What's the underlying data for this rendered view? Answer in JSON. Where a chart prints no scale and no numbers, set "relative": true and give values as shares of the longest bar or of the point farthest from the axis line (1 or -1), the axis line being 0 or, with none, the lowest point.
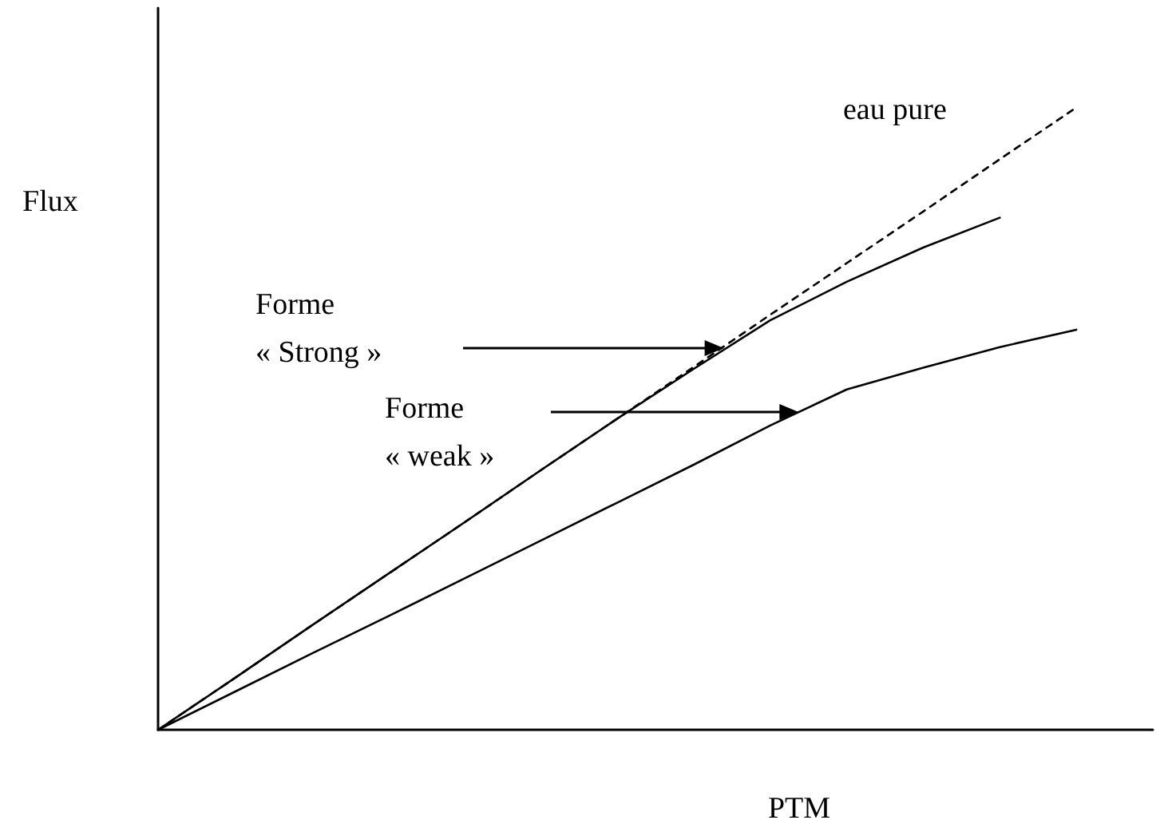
{
  "chart_data": {
    "type": "line",
    "relative": true,
    "xlabel": "PTM",
    "ylabel": "Flux",
    "legend": false,
    "annotations": [
      "Forme\n« Strong »",
      "Forme\n« weak »"
    ],
    "grid": false,
    "marker": "none",
    "categories": [
      null,
      null,
      null,
      null,
      null,
      null,
      null,
      null,
      null,
      null,
      null,
      null,
      null,
      null
    ],
    "series": [
      {
        "name": "eau pure",
        "color": "#000000",
        "line_style": "dashed",
        "values": [
          0,
          0.083,
          0.167,
          0.25,
          0.333,
          0.417,
          0.5,
          0.583,
          0.667,
          0.75,
          0.833,
          0.917,
          1,
          null
        ]
      },
      {
        "color": "#000000",
        "line_style": "solid",
        "values": [
          0,
          0.083,
          0.167,
          0.25,
          0.333,
          0.417,
          0.5,
          0.58,
          0.658,
          0.72,
          0.775,
          0.823,
          null,
          null
        ]
      },
      {
        "color": "#000000",
        "line_style": "solid",
        "values": [
          0,
          0.061,
          0.122,
          0.182,
          0.243,
          0.304,
          0.365,
          0.426,
          0.489,
          0.547,
          0.582,
          0.615,
          0.643,
          null
        ]
      }
    ]
  }
}
